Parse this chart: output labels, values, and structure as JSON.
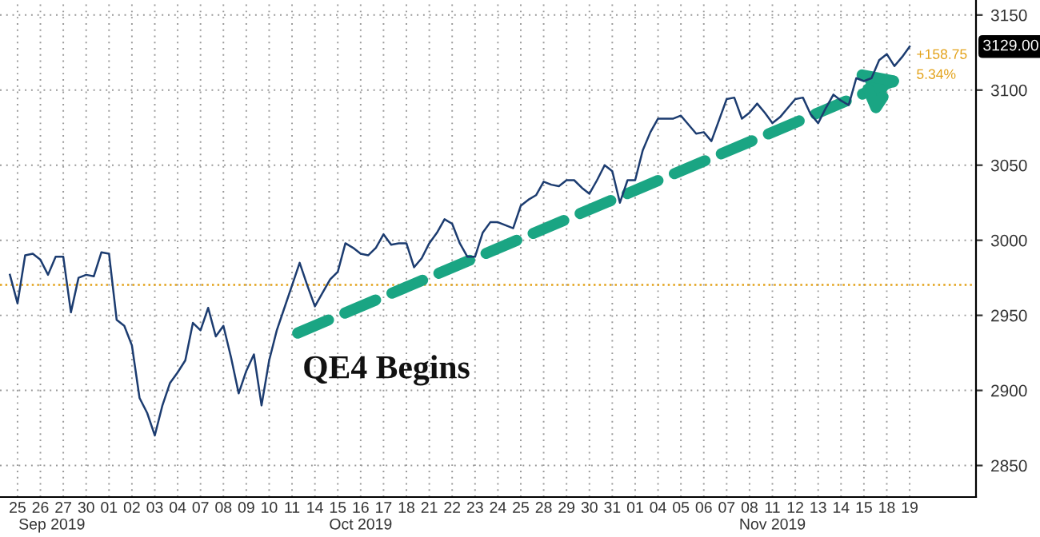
{
  "chart_data": {
    "type": "line",
    "categories": [
      null,
      "25",
      null,
      null,
      "26",
      null,
      null,
      "27",
      null,
      null,
      "30",
      null,
      null,
      "01",
      null,
      null,
      "02",
      null,
      null,
      "03",
      null,
      null,
      "04",
      null,
      null,
      "07",
      null,
      null,
      "08",
      null,
      null,
      "09",
      null,
      null,
      "10",
      null,
      null,
      "11",
      null,
      null,
      "14",
      null,
      null,
      "15",
      null,
      null,
      "16",
      null,
      null,
      "17",
      null,
      null,
      "18",
      null,
      null,
      "21",
      null,
      null,
      "22",
      null,
      null,
      "23",
      null,
      null,
      "24",
      null,
      null,
      "25",
      null,
      null,
      "28",
      null,
      null,
      "29",
      null,
      null,
      "30",
      null,
      null,
      "31",
      null,
      null,
      "01",
      null,
      null,
      "04",
      null,
      null,
      "05",
      null,
      null,
      "06",
      null,
      null,
      "07",
      null,
      null,
      "08",
      null,
      null,
      "11",
      null,
      null,
      "12",
      null,
      null,
      "13",
      null,
      null,
      "14",
      null,
      null,
      "15",
      null,
      null,
      "18",
      null,
      null,
      "19",
      null
    ],
    "series": [
      {
        "color": "#1c3c70",
        "values": [
          2977,
          2958,
          2990,
          2991,
          2987,
          2977,
          2989,
          2989,
          2952,
          2975,
          2977,
          2976,
          2992,
          2991,
          2947,
          2943,
          2930,
          2895,
          2885,
          2870,
          2890,
          2905,
          2912,
          2920,
          2945,
          2940,
          2955,
          2936,
          2943,
          2922,
          2898,
          2913,
          2924,
          2890,
          2920,
          2940,
          2955,
          2970,
          2985,
          2970,
          2956,
          2965,
          2974,
          2979,
          2998,
          2995,
          2991,
          2990,
          2995,
          3004,
          2997,
          2998,
          2998,
          2982,
          2988,
          2998,
          3005,
          3014,
          3011,
          2998,
          2989,
          2989,
          3005,
          3012,
          3012,
          3010,
          3008,
          3023,
          3027,
          3030,
          3039,
          3037,
          3036,
          3040,
          3040,
          3035,
          3031,
          3040,
          3050,
          3046,
          3025,
          3040,
          3040,
          3060,
          3072,
          3081,
          3081,
          3081,
          3083,
          3077,
          3071,
          3072,
          3066,
          3080,
          3094,
          3095,
          3081,
          3085,
          3091,
          3085,
          3078,
          3082,
          3088,
          3094,
          3095,
          3084,
          3078,
          3088,
          3097,
          3093,
          3090,
          3108,
          3106,
          3108,
          3120,
          3124,
          3116,
          3122,
          3129,
          null
        ]
      }
    ],
    "ylim": [
      2829,
      3160
    ],
    "yticks": [
      2850,
      2900,
      2950,
      3000,
      3050,
      3100,
      3150
    ],
    "grid": true,
    "line_style": "solid",
    "ref_lines": [
      {
        "axis": "y",
        "value": 2970.25,
        "color": "#e3a21a",
        "line_style": "dotted"
      }
    ],
    "annotations": [
      "QE4 Begins",
      "+158.75",
      "5.34%",
      "3129.00",
      "Sep 2019",
      "Oct 2019",
      "Nov 2019"
    ]
  }
}
